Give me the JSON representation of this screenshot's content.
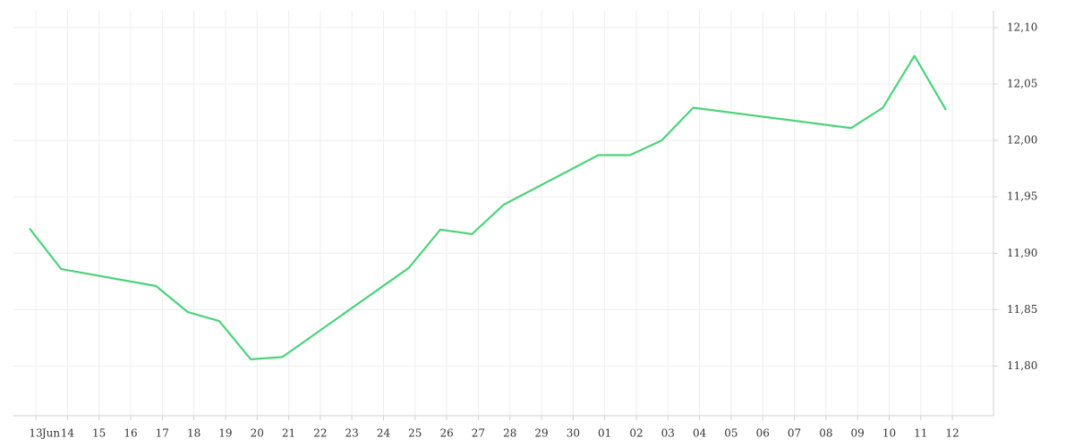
{
  "chart_data": {
    "type": "line",
    "x": [
      -0.2,
      0.8,
      3.8,
      4.8,
      5.8,
      6.8,
      7.8,
      11.8,
      12.8,
      13.8,
      14.8,
      17.8,
      18.8,
      19.8,
      20.8,
      25.8,
      26.8,
      27.8,
      28.8
    ],
    "series": [
      {
        "color": "#4cd37a",
        "values": [
          11.922,
          11.886,
          11.871,
          11.848,
          11.84,
          11.806,
          11.808,
          11.887,
          11.921,
          11.917,
          11.943,
          11.987,
          11.987,
          12.0,
          12.029,
          12.011,
          12.029,
          12.075,
          12.027
        ]
      }
    ],
    "xlim": [
      -0.71,
      30.3
    ],
    "xticks": [
      {
        "value": 0,
        "label": "13"
      },
      {
        "value": 1,
        "label": "14"
      },
      {
        "value": 2,
        "label": "15"
      },
      {
        "value": 3,
        "label": "16"
      },
      {
        "value": 4,
        "label": "17"
      },
      {
        "value": 5,
        "label": "18"
      },
      {
        "value": 6,
        "label": "19"
      },
      {
        "value": 7,
        "label": "20"
      },
      {
        "value": 8,
        "label": "21"
      },
      {
        "value": 9,
        "label": "22"
      },
      {
        "value": 10,
        "label": "23"
      },
      {
        "value": 11,
        "label": "24"
      },
      {
        "value": 12,
        "label": "25"
      },
      {
        "value": 13,
        "label": "26"
      },
      {
        "value": 14,
        "label": "27"
      },
      {
        "value": 15,
        "label": "28"
      },
      {
        "value": 16,
        "label": "29"
      },
      {
        "value": 17,
        "label": "30"
      },
      {
        "value": 18,
        "label": "01"
      },
      {
        "value": 19,
        "label": "02"
      },
      {
        "value": 20,
        "label": "03"
      },
      {
        "value": 21,
        "label": "04"
      },
      {
        "value": 22,
        "label": "05"
      },
      {
        "value": 23,
        "label": "06"
      },
      {
        "value": 24,
        "label": "07"
      },
      {
        "value": 25,
        "label": "08"
      },
      {
        "value": 26,
        "label": "09"
      },
      {
        "value": 27,
        "label": "10"
      },
      {
        "value": 28,
        "label": "11"
      },
      {
        "value": 29,
        "label": "12"
      }
    ],
    "month_marks": [
      {
        "value": 0.48,
        "label": "Jun"
      }
    ],
    "ylim": [
      11.756,
      12.115
    ],
    "yticks": [
      {
        "value": 11.8,
        "label": "11,80"
      },
      {
        "value": 11.85,
        "label": "11,85"
      },
      {
        "value": 11.9,
        "label": "11,90"
      },
      {
        "value": 11.95,
        "label": "11,95"
      },
      {
        "value": 12.0,
        "label": "12,00"
      },
      {
        "value": 12.05,
        "label": "12,05"
      },
      {
        "value": 12.1,
        "label": "12,10"
      }
    ],
    "grid": true
  }
}
